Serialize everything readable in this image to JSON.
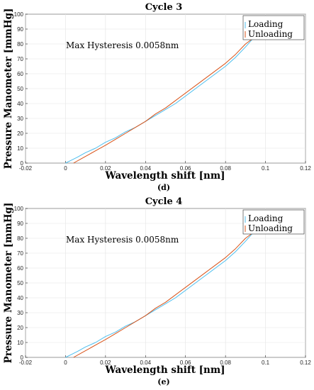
{
  "chart_data": [
    {
      "type": "line",
      "panel": "d",
      "title": "Cycle 3",
      "caption": "(d)",
      "xlabel": "Wavelength shift [nm]",
      "ylabel": "Pressure Manometer [mmHg]",
      "xlim": [
        -0.02,
        0.12
      ],
      "ylim": [
        0,
        100
      ],
      "xticks": [
        "-0.02",
        "0",
        "0.02",
        "0.04",
        "0.06",
        "0.08",
        "0.1",
        "0.12"
      ],
      "yticks": [
        "0",
        "10",
        "20",
        "30",
        "40",
        "50",
        "60",
        "70",
        "80",
        "90",
        "100"
      ],
      "grid": true,
      "legend_position": "top-right",
      "annotation": "Max Hysteresis 0.0058nm",
      "series": [
        {
          "name": "Loading",
          "color": "#4DBEEE",
          "x": [
            0,
            0.003,
            0.006,
            0.01,
            0.015,
            0.02,
            0.025,
            0.03,
            0.035,
            0.04,
            0.045,
            0.05,
            0.055,
            0.06,
            0.065,
            0.07,
            0.075,
            0.08,
            0.085,
            0.09,
            0.094
          ],
          "y": [
            0,
            2,
            4,
            7,
            10,
            14,
            17,
            21,
            24,
            28,
            32,
            36,
            40,
            45,
            50,
            55,
            60,
            65,
            71,
            78,
            84
          ]
        },
        {
          "name": "Unloading",
          "color": "#D95319",
          "x": [
            0.004,
            0.008,
            0.012,
            0.016,
            0.02,
            0.025,
            0.03,
            0.035,
            0.04,
            0.045,
            0.05,
            0.055,
            0.06,
            0.065,
            0.07,
            0.075,
            0.08,
            0.085,
            0.09,
            0.094
          ],
          "y": [
            0,
            3,
            6,
            9,
            12,
            16,
            20,
            24,
            28,
            33,
            37,
            42,
            47,
            52,
            57,
            62,
            67,
            73,
            80,
            84
          ]
        }
      ]
    },
    {
      "type": "line",
      "panel": "e",
      "title": "Cycle 4",
      "caption": "(e)",
      "xlabel": "Wavelength shift [nm]",
      "ylabel": "Pressure Manometer [mmHg]",
      "xlim": [
        -0.02,
        0.12
      ],
      "ylim": [
        0,
        100
      ],
      "xticks": [
        "-0.02",
        "0",
        "0.02",
        "0.04",
        "0.06",
        "0.08",
        "0.1",
        "0.12"
      ],
      "yticks": [
        "0",
        "10",
        "20",
        "30",
        "40",
        "50",
        "60",
        "70",
        "80",
        "90",
        "100"
      ],
      "grid": true,
      "legend_position": "top-right",
      "annotation": "Max Hysteresis 0.0058nm",
      "series": [
        {
          "name": "Loading",
          "color": "#4DBEEE",
          "x": [
            0,
            0.003,
            0.006,
            0.01,
            0.015,
            0.02,
            0.025,
            0.03,
            0.035,
            0.04,
            0.045,
            0.05,
            0.055,
            0.06,
            0.065,
            0.07,
            0.075,
            0.08,
            0.085,
            0.09,
            0.094
          ],
          "y": [
            0,
            2,
            4,
            7,
            10,
            14,
            17,
            21,
            24,
            28,
            32,
            36,
            40,
            45,
            50,
            55,
            60,
            65,
            71,
            78,
            84
          ]
        },
        {
          "name": "Unloading",
          "color": "#D95319",
          "x": [
            0.004,
            0.008,
            0.012,
            0.016,
            0.02,
            0.025,
            0.03,
            0.035,
            0.04,
            0.045,
            0.05,
            0.055,
            0.06,
            0.065,
            0.07,
            0.075,
            0.08,
            0.085,
            0.09,
            0.094
          ],
          "y": [
            0,
            3,
            6,
            9,
            12,
            16,
            20,
            24,
            28,
            33,
            37,
            42,
            47,
            52,
            57,
            62,
            67,
            73,
            80,
            84
          ]
        }
      ]
    }
  ]
}
